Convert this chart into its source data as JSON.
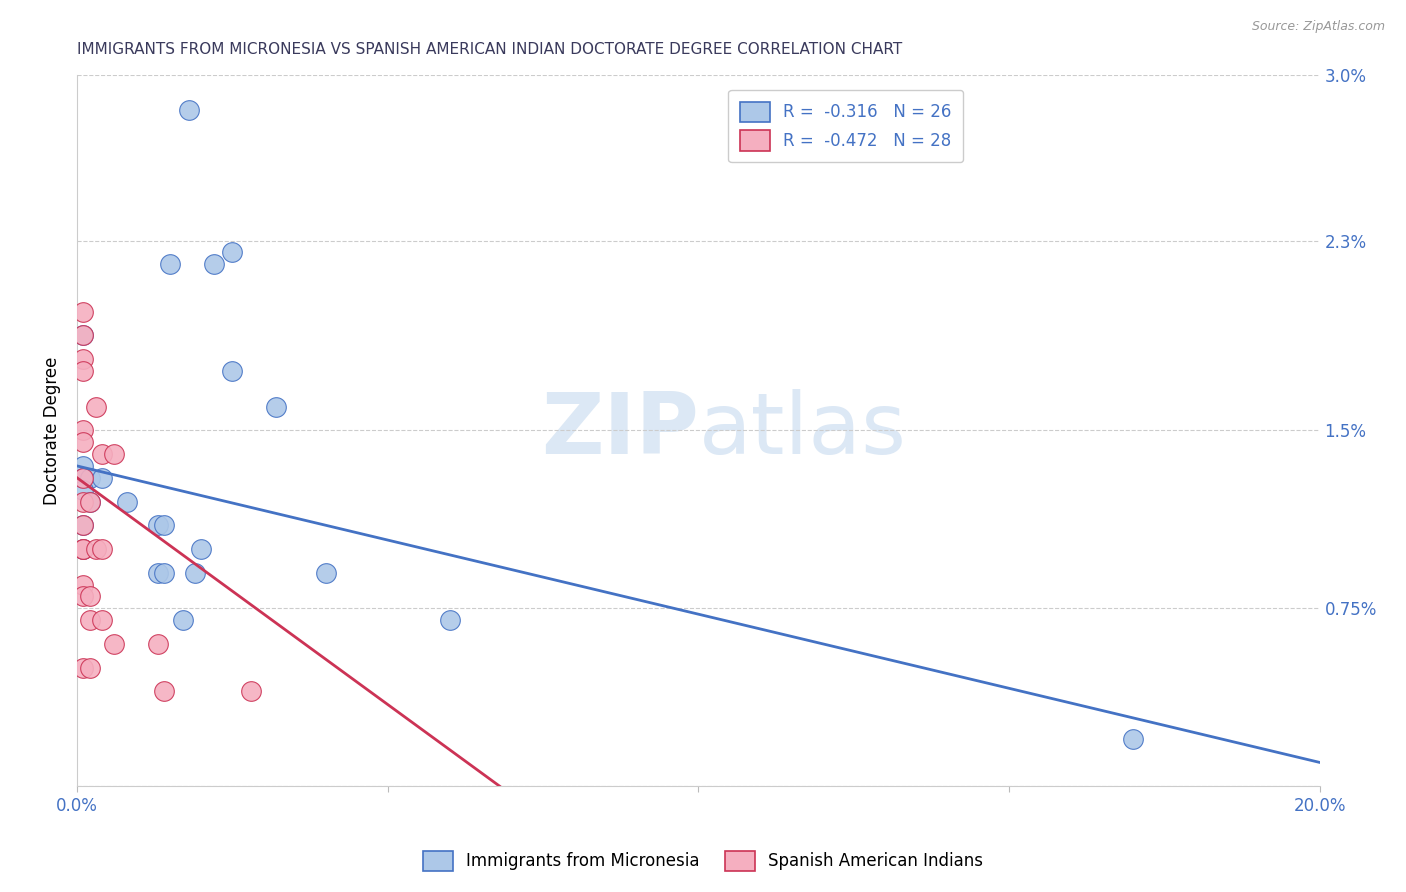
{
  "title": "IMMIGRANTS FROM MICRONESIA VS SPANISH AMERICAN INDIAN DOCTORATE DEGREE CORRELATION CHART",
  "source": "Source: ZipAtlas.com",
  "ylabel": "Doctorate Degree",
  "xlim": [
    0.0,
    0.2
  ],
  "ylim": [
    0.0,
    0.03
  ],
  "xticks": [
    0.0,
    0.05,
    0.1,
    0.15,
    0.2
  ],
  "xtick_labels": [
    "0.0%",
    "",
    "",
    "",
    "20.0%"
  ],
  "yticks": [
    0.0,
    0.0075,
    0.015,
    0.023,
    0.03
  ],
  "ytick_labels": [
    "",
    "0.75%",
    "1.5%",
    "2.3%",
    "3.0%"
  ],
  "legend1_label": "Immigrants from Micronesia",
  "legend2_label": "Spanish American Indians",
  "r1": "-0.316",
  "n1": "26",
  "r2": "-0.472",
  "n2": "28",
  "color_blue": "#adc8e8",
  "color_pink": "#f5afc0",
  "line_color_blue": "#4472c4",
  "line_color_pink": "#cc3355",
  "title_color": "#3a3a5c",
  "axis_color": "#4472c4",
  "watermark_color": "#dce8f5",
  "blue_points": [
    [
      0.018,
      0.0285
    ],
    [
      0.025,
      0.0225
    ],
    [
      0.015,
      0.022
    ],
    [
      0.022,
      0.022
    ],
    [
      0.001,
      0.019
    ],
    [
      0.025,
      0.0175
    ],
    [
      0.032,
      0.016
    ],
    [
      0.001,
      0.0135
    ],
    [
      0.001,
      0.013
    ],
    [
      0.002,
      0.013
    ],
    [
      0.004,
      0.013
    ],
    [
      0.001,
      0.0125
    ],
    [
      0.008,
      0.012
    ],
    [
      0.002,
      0.012
    ],
    [
      0.001,
      0.011
    ],
    [
      0.013,
      0.011
    ],
    [
      0.014,
      0.011
    ],
    [
      0.001,
      0.01
    ],
    [
      0.02,
      0.01
    ],
    [
      0.013,
      0.009
    ],
    [
      0.014,
      0.009
    ],
    [
      0.019,
      0.009
    ],
    [
      0.04,
      0.009
    ],
    [
      0.017,
      0.007
    ],
    [
      0.06,
      0.007
    ],
    [
      0.17,
      0.002
    ]
  ],
  "pink_points": [
    [
      0.001,
      0.02
    ],
    [
      0.001,
      0.019
    ],
    [
      0.001,
      0.018
    ],
    [
      0.001,
      0.0175
    ],
    [
      0.003,
      0.016
    ],
    [
      0.001,
      0.015
    ],
    [
      0.001,
      0.0145
    ],
    [
      0.004,
      0.014
    ],
    [
      0.006,
      0.014
    ],
    [
      0.001,
      0.013
    ],
    [
      0.001,
      0.012
    ],
    [
      0.002,
      0.012
    ],
    [
      0.001,
      0.011
    ],
    [
      0.001,
      0.01
    ],
    [
      0.001,
      0.01
    ],
    [
      0.003,
      0.01
    ],
    [
      0.004,
      0.01
    ],
    [
      0.001,
      0.0085
    ],
    [
      0.001,
      0.008
    ],
    [
      0.002,
      0.008
    ],
    [
      0.002,
      0.007
    ],
    [
      0.004,
      0.007
    ],
    [
      0.006,
      0.006
    ],
    [
      0.013,
      0.006
    ],
    [
      0.001,
      0.005
    ],
    [
      0.002,
      0.005
    ],
    [
      0.014,
      0.004
    ],
    [
      0.028,
      0.004
    ]
  ],
  "blue_line_x": [
    0.0,
    0.2
  ],
  "blue_line_y": [
    0.0135,
    0.001
  ],
  "pink_line_x": [
    0.0,
    0.068
  ],
  "pink_line_y": [
    0.013,
    0.0
  ]
}
